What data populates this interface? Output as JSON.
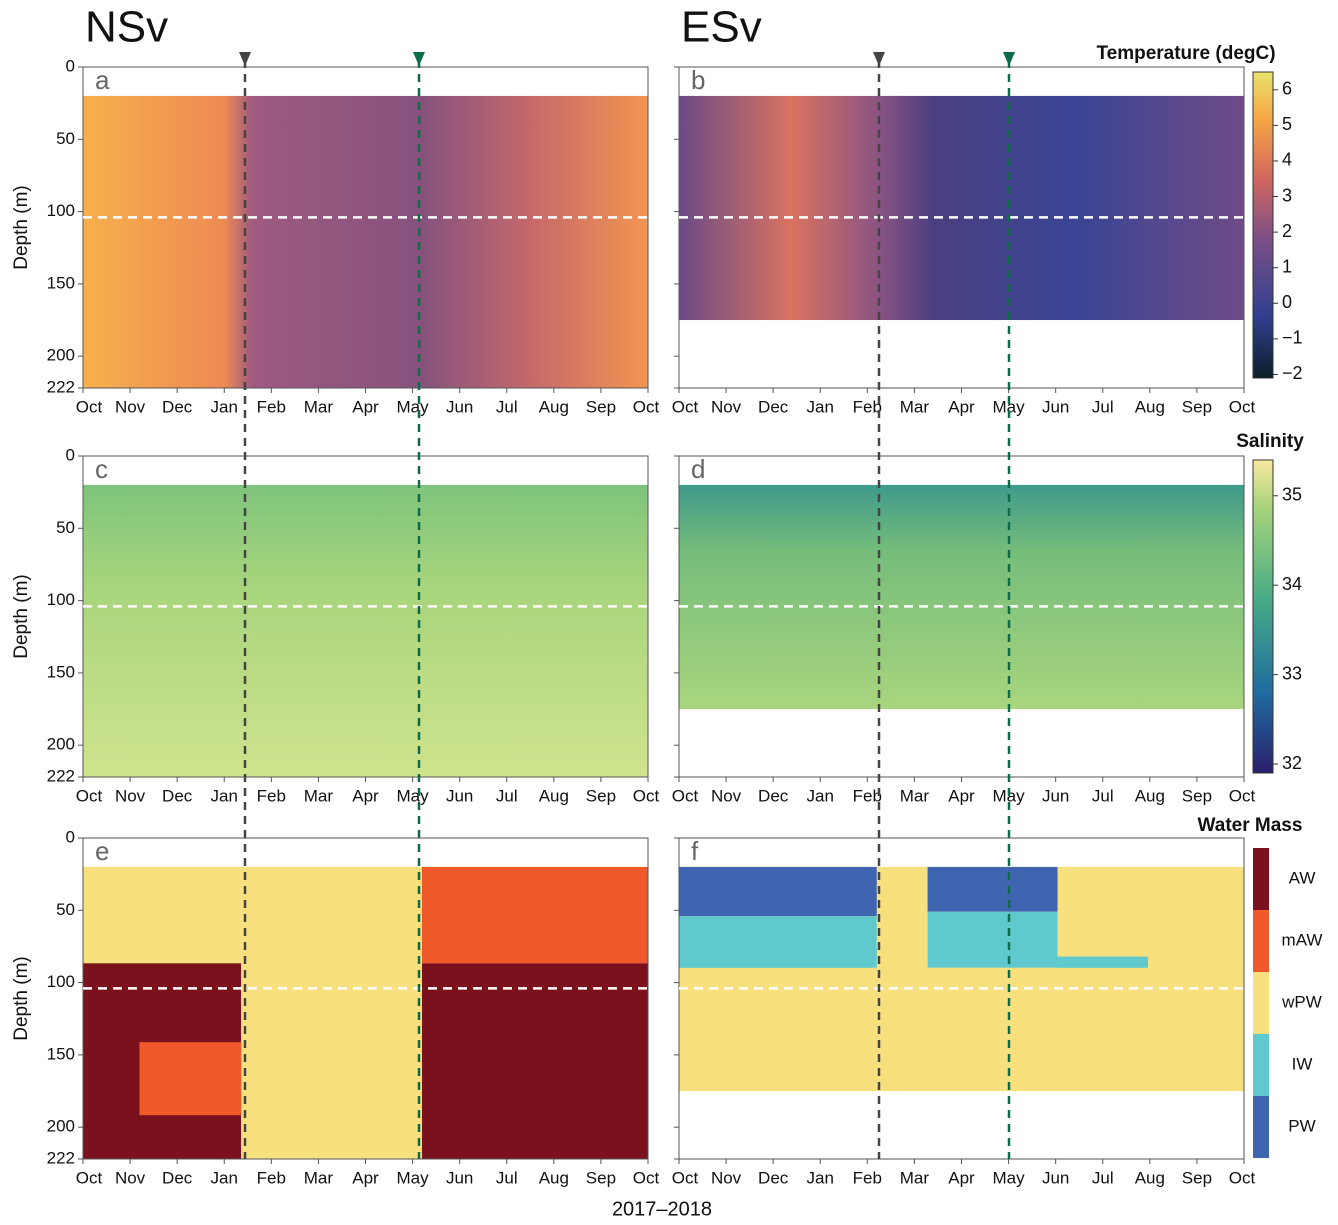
{
  "figure": {
    "columns": [
      {
        "title": "NSv",
        "measured_depth": [
          20,
          222
        ]
      },
      {
        "title": "ESv",
        "measured_depth": [
          20,
          175
        ]
      }
    ],
    "x_label": "2017–2018",
    "months": [
      "Oct",
      "Nov",
      "Dec",
      "Jan",
      "Feb",
      "Mar",
      "Apr",
      "May",
      "Jun",
      "Jul",
      "Aug",
      "Sep",
      "Oct"
    ],
    "depth_axis": {
      "label": "Depth (m)",
      "ylim": [
        0,
        222
      ],
      "yticks": [
        0,
        50,
        100,
        150,
        200,
        222
      ]
    },
    "reference_depth": 104,
    "panels": [
      {
        "letter": "a",
        "row": 0,
        "col": 0
      },
      {
        "letter": "b",
        "row": 0,
        "col": 1
      },
      {
        "letter": "c",
        "row": 1,
        "col": 0
      },
      {
        "letter": "d",
        "row": 1,
        "col": 1
      },
      {
        "letter": "e",
        "row": 2,
        "col": 0
      },
      {
        "letter": "f",
        "row": 2,
        "col": 1
      }
    ],
    "temperature": {
      "title": "Temperature (degC)",
      "lim": [
        -2.1,
        6.5
      ],
      "ticks": [
        6,
        5,
        4,
        3,
        2,
        1,
        0,
        {
          "value": -1,
          "label": "−1"
        },
        {
          "value": -2,
          "label": "−2"
        }
      ]
    },
    "salinity": {
      "title": "Salinity",
      "lim": [
        31.9,
        35.4
      ],
      "ticks": [
        35,
        34,
        33,
        32
      ]
    },
    "water_mass": {
      "title": "Water Mass",
      "classes": [
        {
          "name": "AW",
          "color": "#7b111d"
        },
        {
          "name": "mAW",
          "color": "#ef5a2a"
        },
        {
          "name": "wPW",
          "color": "#f9e07e"
        },
        {
          "name": "IW",
          "color": "#5fc9cf"
        },
        {
          "name": "PW",
          "color": "#3f65b0"
        }
      ]
    }
  }
}
